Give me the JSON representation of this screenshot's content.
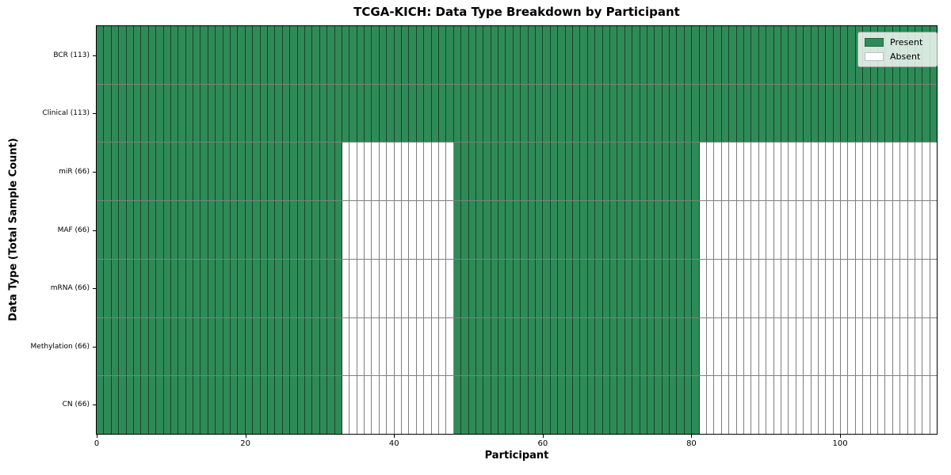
{
  "chart_data": {
    "type": "heatmap",
    "title": "TCGA-KICH: Data Type Breakdown by Participant",
    "xlabel": "Participant",
    "ylabel": "Data Type (Total Sample Count)",
    "x_range": [
      0,
      113
    ],
    "n_participants": 113,
    "x_ticks": [
      0,
      20,
      40,
      60,
      80,
      100
    ],
    "grid": true,
    "legend_position": "upper right",
    "legend": [
      {
        "label": "Present",
        "color": "#2e8b57"
      },
      {
        "label": "Absent",
        "color": "#ffffff"
      }
    ],
    "colors": {
      "present": "#2e8b57",
      "absent": "#ffffff",
      "cell_edge": "rgba(0,0,0,0.5)"
    },
    "rows": [
      {
        "label": "BCR (113)",
        "total_samples": 113,
        "segments": [
          {
            "state": "present",
            "count": 113
          }
        ]
      },
      {
        "label": "Clinical (113)",
        "total_samples": 113,
        "segments": [
          {
            "state": "present",
            "count": 113
          }
        ]
      },
      {
        "label": "miR (66)",
        "total_samples": 66,
        "segments": [
          {
            "state": "present",
            "count": 33
          },
          {
            "state": "absent",
            "count": 15
          },
          {
            "state": "present",
            "count": 33
          },
          {
            "state": "absent",
            "count": 32
          }
        ]
      },
      {
        "label": "MAF (66)",
        "total_samples": 66,
        "segments": [
          {
            "state": "present",
            "count": 33
          },
          {
            "state": "absent",
            "count": 15
          },
          {
            "state": "present",
            "count": 33
          },
          {
            "state": "absent",
            "count": 32
          }
        ]
      },
      {
        "label": "mRNA (66)",
        "total_samples": 66,
        "segments": [
          {
            "state": "present",
            "count": 33
          },
          {
            "state": "absent",
            "count": 15
          },
          {
            "state": "present",
            "count": 33
          },
          {
            "state": "absent",
            "count": 32
          }
        ]
      },
      {
        "label": "Methylation (66)",
        "total_samples": 66,
        "segments": [
          {
            "state": "present",
            "count": 33
          },
          {
            "state": "absent",
            "count": 15
          },
          {
            "state": "present",
            "count": 33
          },
          {
            "state": "absent",
            "count": 32
          }
        ]
      },
      {
        "label": "CN (66)",
        "total_samples": 66,
        "segments": [
          {
            "state": "present",
            "count": 33
          },
          {
            "state": "absent",
            "count": 15
          },
          {
            "state": "present",
            "count": 33
          },
          {
            "state": "absent",
            "count": 32
          }
        ]
      }
    ]
  }
}
